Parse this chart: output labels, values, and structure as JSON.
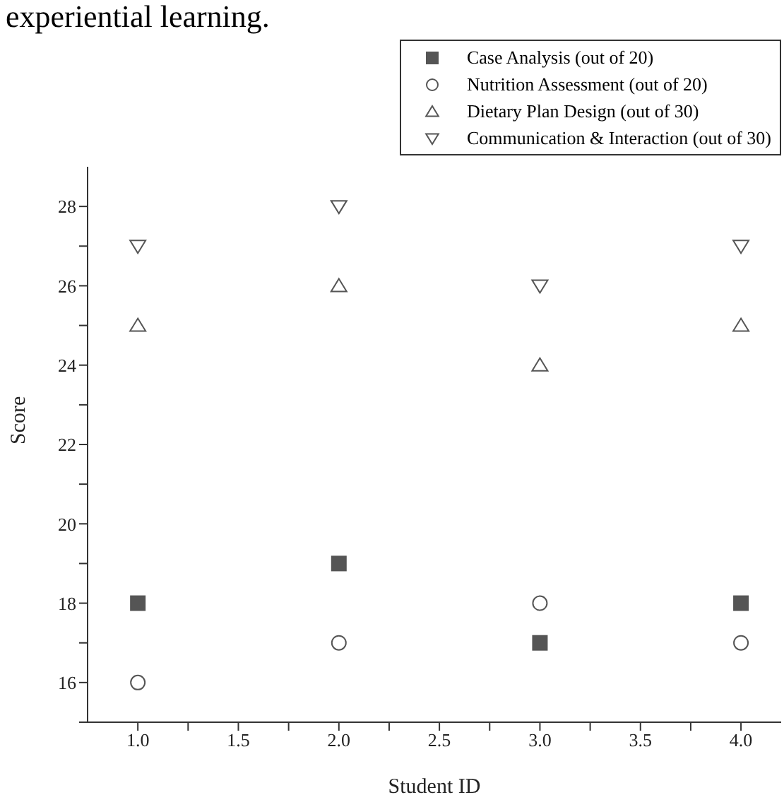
{
  "chart_data": {
    "type": "scatter",
    "annotations": [
      "experiential learning."
    ],
    "xlabel": "Student ID",
    "ylabel": "Score",
    "x": [
      1,
      2,
      3,
      4
    ],
    "xlim": [
      0.75,
      4.2
    ],
    "xticks": [
      {
        "value": 1,
        "label": "1.0"
      },
      {
        "value": 1.25,
        "label": null
      },
      {
        "value": 1.5,
        "label": "1.5"
      },
      {
        "value": 1.75,
        "label": null
      },
      {
        "value": 2,
        "label": "2.0"
      },
      {
        "value": 2.25,
        "label": null
      },
      {
        "value": 2.5,
        "label": "2.5"
      },
      {
        "value": 2.75,
        "label": null
      },
      {
        "value": 3,
        "label": "3.0"
      },
      {
        "value": 3.25,
        "label": null
      },
      {
        "value": 3.5,
        "label": "3.5"
      },
      {
        "value": 3.75,
        "label": null
      },
      {
        "value": 4,
        "label": "4.0"
      }
    ],
    "ylim": [
      15,
      29
    ],
    "yticks": [
      {
        "value": 15,
        "label": null
      },
      16,
      {
        "value": 17,
        "label": null
      },
      18,
      {
        "value": 19,
        "label": null
      },
      20,
      {
        "value": 21,
        "label": null
      },
      22,
      {
        "value": 23,
        "label": null
      },
      24,
      {
        "value": 25,
        "label": null
      },
      26,
      {
        "value": 27,
        "label": null
      },
      28
    ],
    "series": [
      {
        "name": "Case Analysis (out of 20)",
        "color": "#555555",
        "marker": "square",
        "values": [
          18,
          19,
          17,
          18
        ]
      },
      {
        "name": "Nutrition Assessment (out of 20)",
        "color": "#555555",
        "marker": "circle",
        "values": [
          16,
          17,
          18,
          17
        ]
      },
      {
        "name": "Dietary Plan Design (out of 30)",
        "color": "#555555",
        "marker": "triangle",
        "values": [
          25,
          26,
          24,
          25
        ]
      },
      {
        "name": "Communication & Interaction (out of 30)",
        "color": "#555555",
        "marker": "triangle-down",
        "values": [
          27,
          28,
          26,
          27
        ]
      }
    ],
    "legend": "top right",
    "grid": false
  }
}
